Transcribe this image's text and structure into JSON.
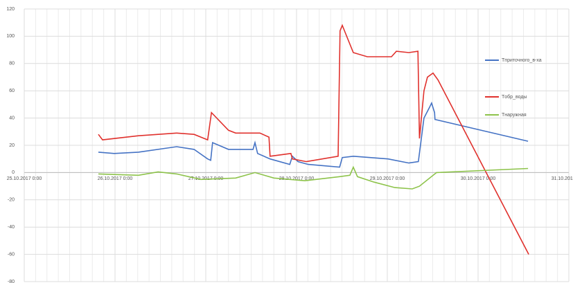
{
  "chart_data": {
    "type": "line",
    "xlim": [
      "2017-10-25T00:00",
      "2017-10-31T00:00"
    ],
    "xticks": [
      {
        "value": "2017-10-25T00:00",
        "label": "25.10.2017 0:00"
      },
      {
        "value": "2017-10-26T00:00",
        "label": "26.10.2017 0:00"
      },
      {
        "value": "2017-10-27T00:00",
        "label": "27.10.2017 0:00"
      },
      {
        "value": "2017-10-28T00:00",
        "label": "28.10.2017 0:00"
      },
      {
        "value": "2017-10-29T00:00",
        "label": "29.10.2017 0:00"
      },
      {
        "value": "2017-10-30T00:00",
        "label": "30.10.2017 0:00"
      },
      {
        "value": "2017-10-31T00:00",
        "label": "31.10.2017 0:00"
      }
    ],
    "ylim": [
      -80,
      120
    ],
    "yticks": [
      -80,
      -60,
      -40,
      -20,
      0,
      20,
      40,
      60,
      80,
      100,
      120
    ],
    "grid": true,
    "legend": "right",
    "series": [
      {
        "name": "Tприточного_в-ха",
        "color": "#4472c4",
        "x": [
          "2017-10-25T19:36",
          "2017-10-25T23:48",
          "2017-10-26T06:12",
          "2017-10-26T16:18",
          "2017-10-26T20:54",
          "2017-10-27T00:30",
          "2017-10-27T01:18",
          "2017-10-27T01:48",
          "2017-10-27T06:00",
          "2017-10-27T12:30",
          "2017-10-27T13:00",
          "2017-10-27T13:42",
          "2017-10-27T17:00",
          "2017-10-27T22:12",
          "2017-10-27T22:54",
          "2017-10-28T00:24",
          "2017-10-28T03:06",
          "2017-10-28T11:24",
          "2017-10-28T12:06",
          "2017-10-28T15:00",
          "2017-10-29T00:12",
          "2017-10-29T05:42",
          "2017-10-29T08:12",
          "2017-10-29T09:42",
          "2017-10-29T11:12",
          "2017-10-29T11:42",
          "2017-10-29T12:30",
          "2017-10-29T12:36",
          "2017-10-30T13:12"
        ],
        "values": [
          15,
          14,
          15,
          19,
          17,
          10,
          9,
          22,
          17,
          17,
          22,
          14,
          10,
          6,
          12,
          8,
          6,
          4,
          11,
          12,
          10,
          7,
          8,
          40,
          48,
          51,
          44,
          39,
          23
        ]
      },
      {
        "name": "Tобр_воды",
        "color": "#e0312d",
        "x": [
          "2017-10-25T19:36",
          "2017-10-25T20:42",
          "2017-10-26T06:12",
          "2017-10-26T16:18",
          "2017-10-26T20:54",
          "2017-10-27T00:30",
          "2017-10-27T01:30",
          "2017-10-27T06:00",
          "2017-10-27T07:54",
          "2017-10-27T14:18",
          "2017-10-27T16:42",
          "2017-10-27T17:00",
          "2017-10-27T22:30",
          "2017-10-27T22:54",
          "2017-10-28T02:36",
          "2017-10-28T11:00",
          "2017-10-28T11:30",
          "2017-10-28T12:06",
          "2017-10-28T15:00",
          "2017-10-28T18:42",
          "2017-10-29T01:06",
          "2017-10-29T02:24",
          "2017-10-29T05:42",
          "2017-10-29T08:06",
          "2017-10-29T08:30",
          "2017-10-29T09:42",
          "2017-10-29T10:36",
          "2017-10-29T12:06",
          "2017-10-29T13:24",
          "2017-10-30T13:24"
        ],
        "values": [
          28,
          24,
          27,
          29,
          28,
          24,
          44,
          31,
          29,
          29,
          26,
          12,
          14,
          10,
          8,
          12,
          104,
          108,
          88,
          85,
          85,
          89,
          88,
          89,
          25,
          60,
          70,
          73,
          68,
          -60
        ]
      },
      {
        "name": "Tнаружная",
        "color": "#8dc34a",
        "x": [
          "2017-10-25T19:36",
          "2017-10-26T06:12",
          "2017-10-26T11:24",
          "2017-10-26T16:18",
          "2017-10-26T22:42",
          "2017-10-27T07:54",
          "2017-10-27T13:00",
          "2017-10-27T18:00",
          "2017-10-28T02:12",
          "2017-10-28T11:24",
          "2017-10-28T14:06",
          "2017-10-28T15:00",
          "2017-10-28T16:06",
          "2017-10-28T20:30",
          "2017-10-29T02:00",
          "2017-10-29T06:36",
          "2017-10-29T08:30",
          "2017-10-29T13:00",
          "2017-10-30T13:12"
        ],
        "values": [
          -1,
          -2,
          0.5,
          -1,
          -5,
          -4,
          0,
          -4,
          -6,
          -3,
          -2,
          4,
          -3,
          -7,
          -11,
          -12,
          -10,
          0,
          3
        ]
      }
    ]
  }
}
